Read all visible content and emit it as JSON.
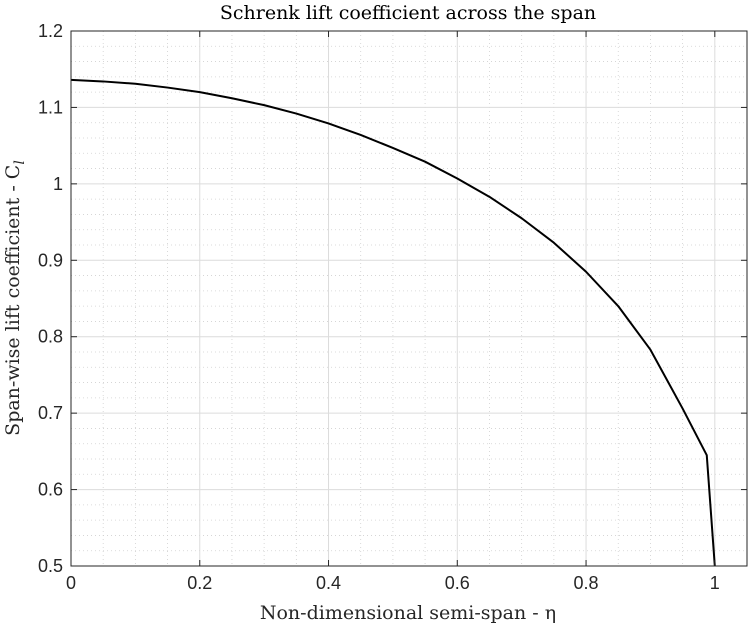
{
  "chart_data": {
    "type": "line",
    "title": "Schrenk lift coefficient across the span",
    "xlabel": "Non-dimensional semi-span - η",
    "ylabel": "Span-wise lift coefficient - C",
    "ylabel_subscript": "l",
    "xlim": [
      0,
      1.05
    ],
    "ylim": [
      0.5,
      1.2
    ],
    "xticks": [
      0,
      0.2,
      0.4,
      0.6,
      0.8,
      1
    ],
    "xtick_labels": [
      "0",
      "0.2",
      "0.4",
      "0.6",
      "0.8",
      "1"
    ],
    "yticks": [
      0.5,
      0.6,
      0.7,
      0.8,
      0.9,
      1.0,
      1.1,
      1.2
    ],
    "ytick_labels": [
      "0.5",
      "0.6",
      "0.7",
      "0.8",
      "0.9",
      "1",
      "1.1",
      "1.2"
    ],
    "grid": true,
    "minor_grid": true,
    "series": [
      {
        "color": "#000000",
        "x": [
          0,
          0.05,
          0.1,
          0.15,
          0.2,
          0.25,
          0.3,
          0.35,
          0.4,
          0.45,
          0.5,
          0.55,
          0.6,
          0.65,
          0.7,
          0.75,
          0.8,
          0.85,
          0.9,
          0.95,
          0.9875,
          1.0
        ],
        "y": [
          1.136,
          1.134,
          1.131,
          1.126,
          1.12,
          1.112,
          1.103,
          1.092,
          1.079,
          1.064,
          1.047,
          1.029,
          1.007,
          0.983,
          0.955,
          0.923,
          0.885,
          0.84,
          0.783,
          0.706,
          0.645,
          0.5
        ]
      }
    ]
  }
}
